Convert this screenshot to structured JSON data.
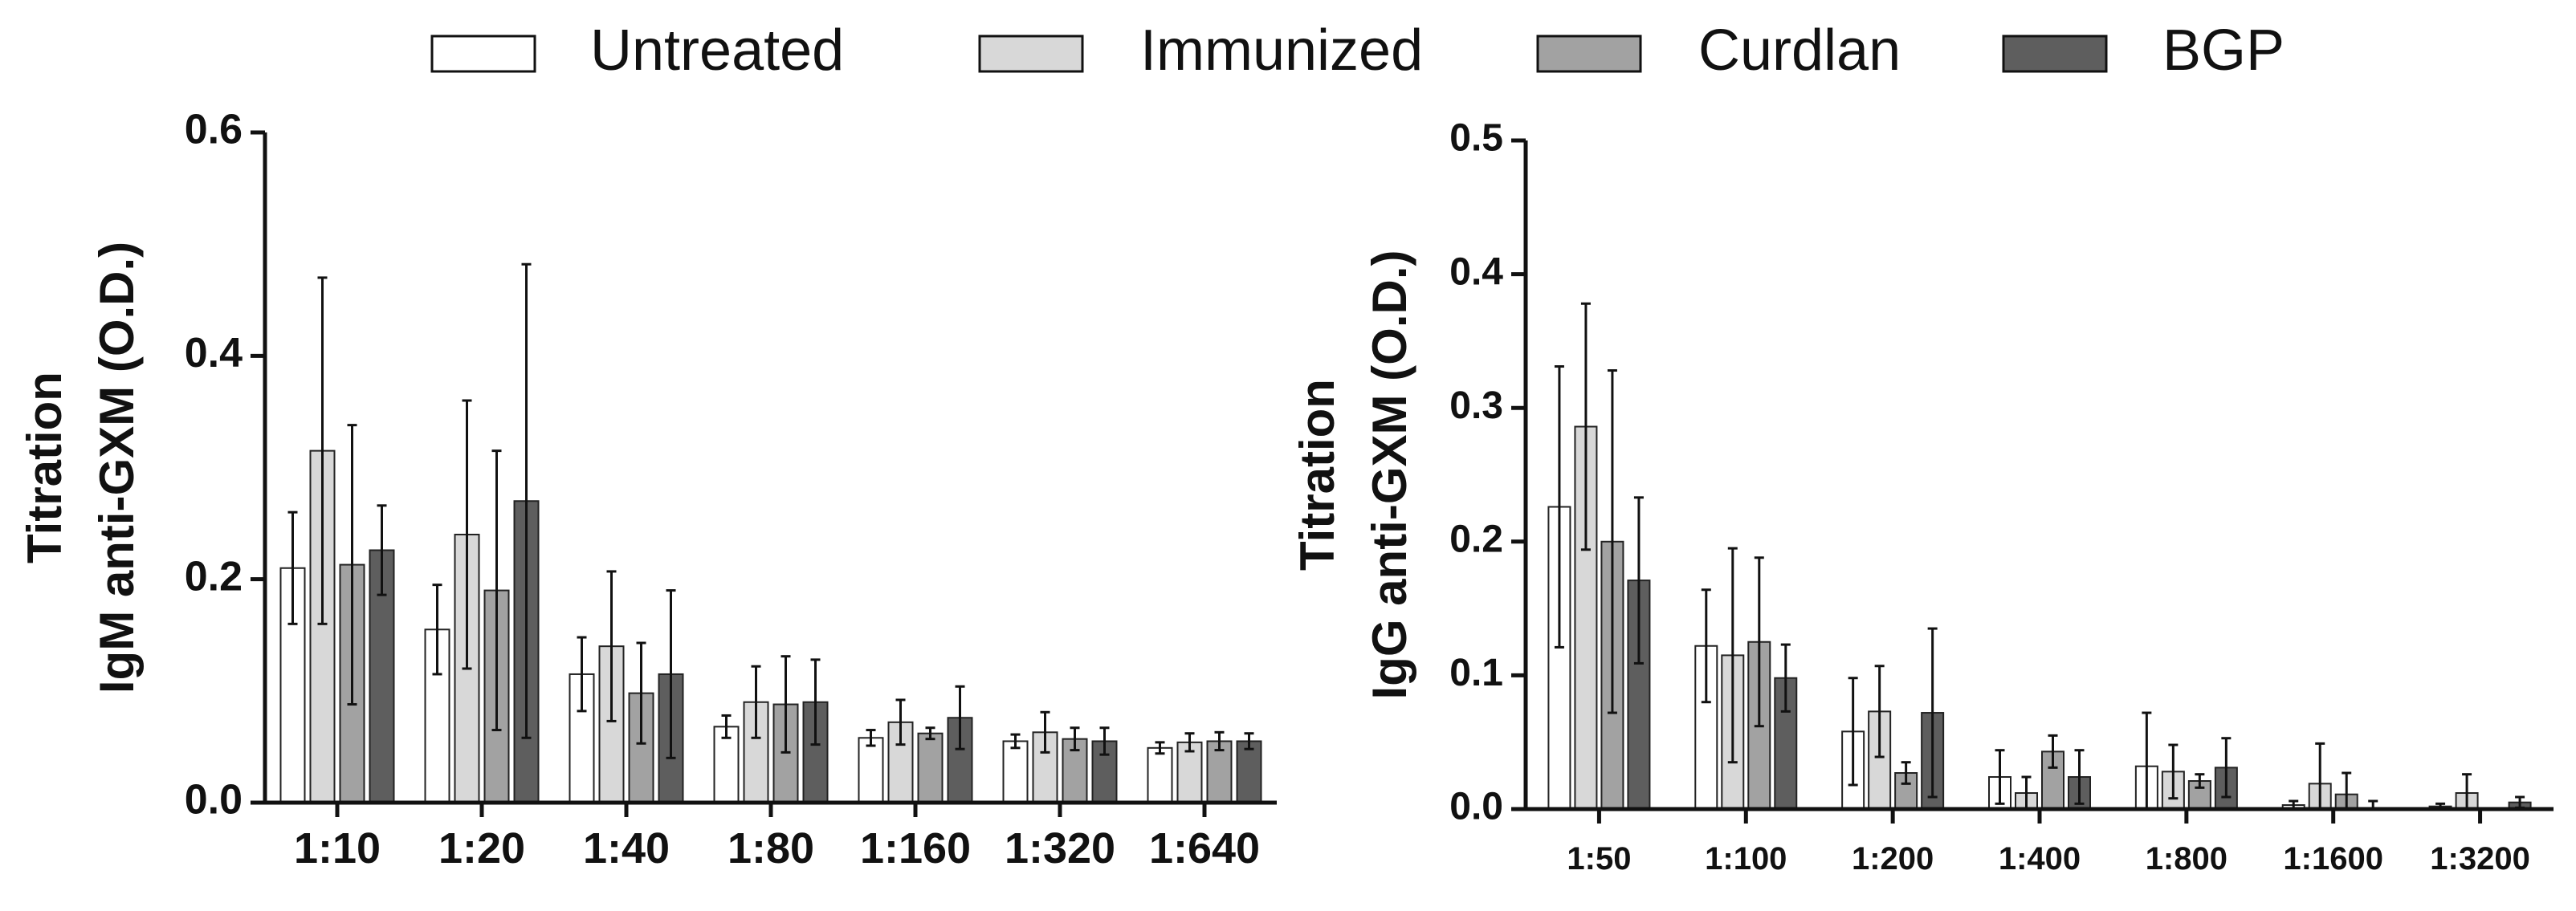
{
  "legend": {
    "entries": [
      {
        "name": "Untreated",
        "color": "#ffffff"
      },
      {
        "name": "Immunized",
        "color": "#d8d8d8"
      },
      {
        "name": "Curdlan",
        "color": "#a2a2a2"
      },
      {
        "name": "BGP",
        "color": "#5e5e5e"
      }
    ]
  },
  "chart_data": [
    {
      "type": "bar",
      "id": "igm",
      "ylabel_line1": "Titration",
      "ylabel_line2": "IgM anti-GXM (O.D.)",
      "ylim": [
        0,
        0.6
      ],
      "yticks": [
        0.0,
        0.2,
        0.4,
        0.6
      ],
      "ytick_labels": [
        "0.0",
        "0.2",
        "0.4",
        "0.6"
      ],
      "categories": [
        "1:10",
        "1:20",
        "1:40",
        "1:80",
        "1:160",
        "1:320",
        "1:640"
      ],
      "series": [
        {
          "name": "Untreated",
          "values": [
            0.21,
            0.155,
            0.115,
            0.068,
            0.058,
            0.055,
            0.049
          ],
          "errors": [
            0.05,
            0.04,
            0.033,
            0.01,
            0.007,
            0.006,
            0.005
          ]
        },
        {
          "name": "Immunized",
          "values": [
            0.315,
            0.24,
            0.14,
            0.09,
            0.072,
            0.063,
            0.054
          ],
          "errors": [
            0.155,
            0.12,
            0.067,
            0.032,
            0.02,
            0.018,
            0.008
          ]
        },
        {
          "name": "Curdlan",
          "values": [
            0.213,
            0.19,
            0.098,
            0.088,
            0.062,
            0.057,
            0.055
          ],
          "errors": [
            0.125,
            0.125,
            0.045,
            0.043,
            0.005,
            0.01,
            0.008
          ]
        },
        {
          "name": "BGP",
          "values": [
            0.226,
            0.27,
            0.115,
            0.09,
            0.076,
            0.055,
            0.055
          ],
          "errors": [
            0.04,
            0.212,
            0.075,
            0.038,
            0.028,
            0.012,
            0.007
          ]
        }
      ]
    },
    {
      "type": "bar",
      "id": "igg",
      "ylabel_line1": "Titration",
      "ylabel_line2": "IgG anti-GXM (O.D.)",
      "ylim": [
        0,
        0.5
      ],
      "yticks": [
        0.0,
        0.1,
        0.2,
        0.3,
        0.4,
        0.5
      ],
      "ytick_labels": [
        "0.0",
        "0.1",
        "0.2",
        "0.3",
        "0.4",
        "0.5"
      ],
      "categories": [
        "1:50",
        "1:100",
        "1:200",
        "1:400",
        "1:800",
        "1:1600",
        "1:3200"
      ],
      "series": [
        {
          "name": "Untreated",
          "values": [
            0.226,
            0.122,
            0.058,
            0.024,
            0.032,
            0.003,
            0.002
          ],
          "errors": [
            0.105,
            0.042,
            0.04,
            0.02,
            0.04,
            0.003,
            0.002
          ]
        },
        {
          "name": "Immunized",
          "values": [
            0.286,
            0.115,
            0.073,
            0.012,
            0.028,
            0.019,
            0.012
          ],
          "errors": [
            0.092,
            0.08,
            0.034,
            0.012,
            0.02,
            0.03,
            0.014
          ]
        },
        {
          "name": "Curdlan",
          "values": [
            0.2,
            0.125,
            0.027,
            0.043,
            0.021,
            0.011,
            0.0
          ],
          "errors": [
            0.128,
            0.063,
            0.008,
            0.012,
            0.005,
            0.016,
            0.0
          ]
        },
        {
          "name": "BGP",
          "values": [
            0.171,
            0.098,
            0.072,
            0.024,
            0.031,
            0.0,
            0.005
          ],
          "errors": [
            0.062,
            0.025,
            0.063,
            0.02,
            0.022,
            0.006,
            0.004
          ]
        }
      ]
    }
  ]
}
